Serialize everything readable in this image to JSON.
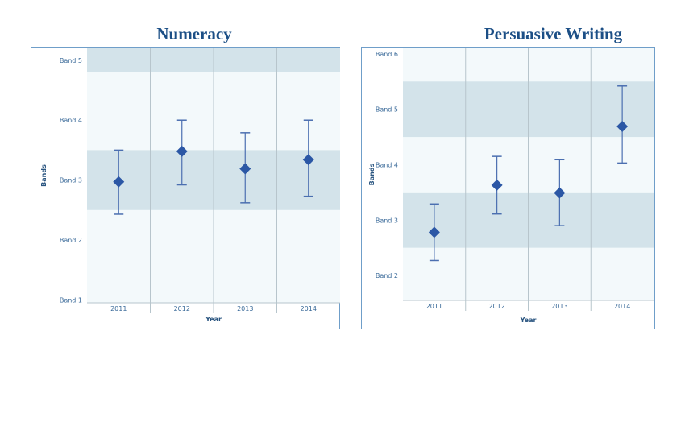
{
  "colors": {
    "title": "#1c4f86",
    "band_dark": "#d3e3ea",
    "band_light": "#f3f9fb",
    "marker": "#2b57a5",
    "error_bar": "#4b6fb0",
    "gridline": "#b7c5cc",
    "frame": "#6f9ec9"
  },
  "chart_data": [
    {
      "type": "scatter",
      "title": "Numeracy",
      "xlabel": "Year",
      "ylabel": "Bands",
      "categories": [
        "2011",
        "2012",
        "2013",
        "2014"
      ],
      "y_tick_labels": [
        "Band 1",
        "Band 2",
        "Band 3",
        "Band 4",
        "Band 5"
      ],
      "band_values": [
        1,
        2,
        3,
        4,
        5
      ],
      "ylim": [
        0.95,
        5.2
      ],
      "shaded_ranges": [
        [
          2.5,
          3.5
        ],
        [
          4.8,
          5.2
        ]
      ],
      "values": [
        2.97,
        3.48,
        3.19,
        3.34
      ],
      "error_low": [
        2.43,
        2.92,
        2.62,
        2.73
      ],
      "error_high": [
        3.5,
        4.0,
        3.79,
        4.0
      ]
    },
    {
      "type": "scatter",
      "title": "Persuasive Writing",
      "xlabel": "Year",
      "ylabel": "Bands",
      "categories": [
        "2011",
        "2012",
        "2013",
        "2014"
      ],
      "y_tick_labels": [
        "Band 2",
        "Band 3",
        "Band 4",
        "Band 5",
        "Band 6"
      ],
      "band_values": [
        2,
        3,
        4,
        5,
        6
      ],
      "ylim": [
        1.55,
        6.1
      ],
      "shaded_ranges": [
        [
          2.5,
          3.5
        ],
        [
          4.5,
          5.5
        ]
      ],
      "values": [
        2.78,
        3.63,
        3.49,
        4.69
      ],
      "error_low": [
        2.27,
        3.11,
        2.9,
        4.03
      ],
      "error_high": [
        3.29,
        4.15,
        4.09,
        5.42
      ]
    }
  ]
}
